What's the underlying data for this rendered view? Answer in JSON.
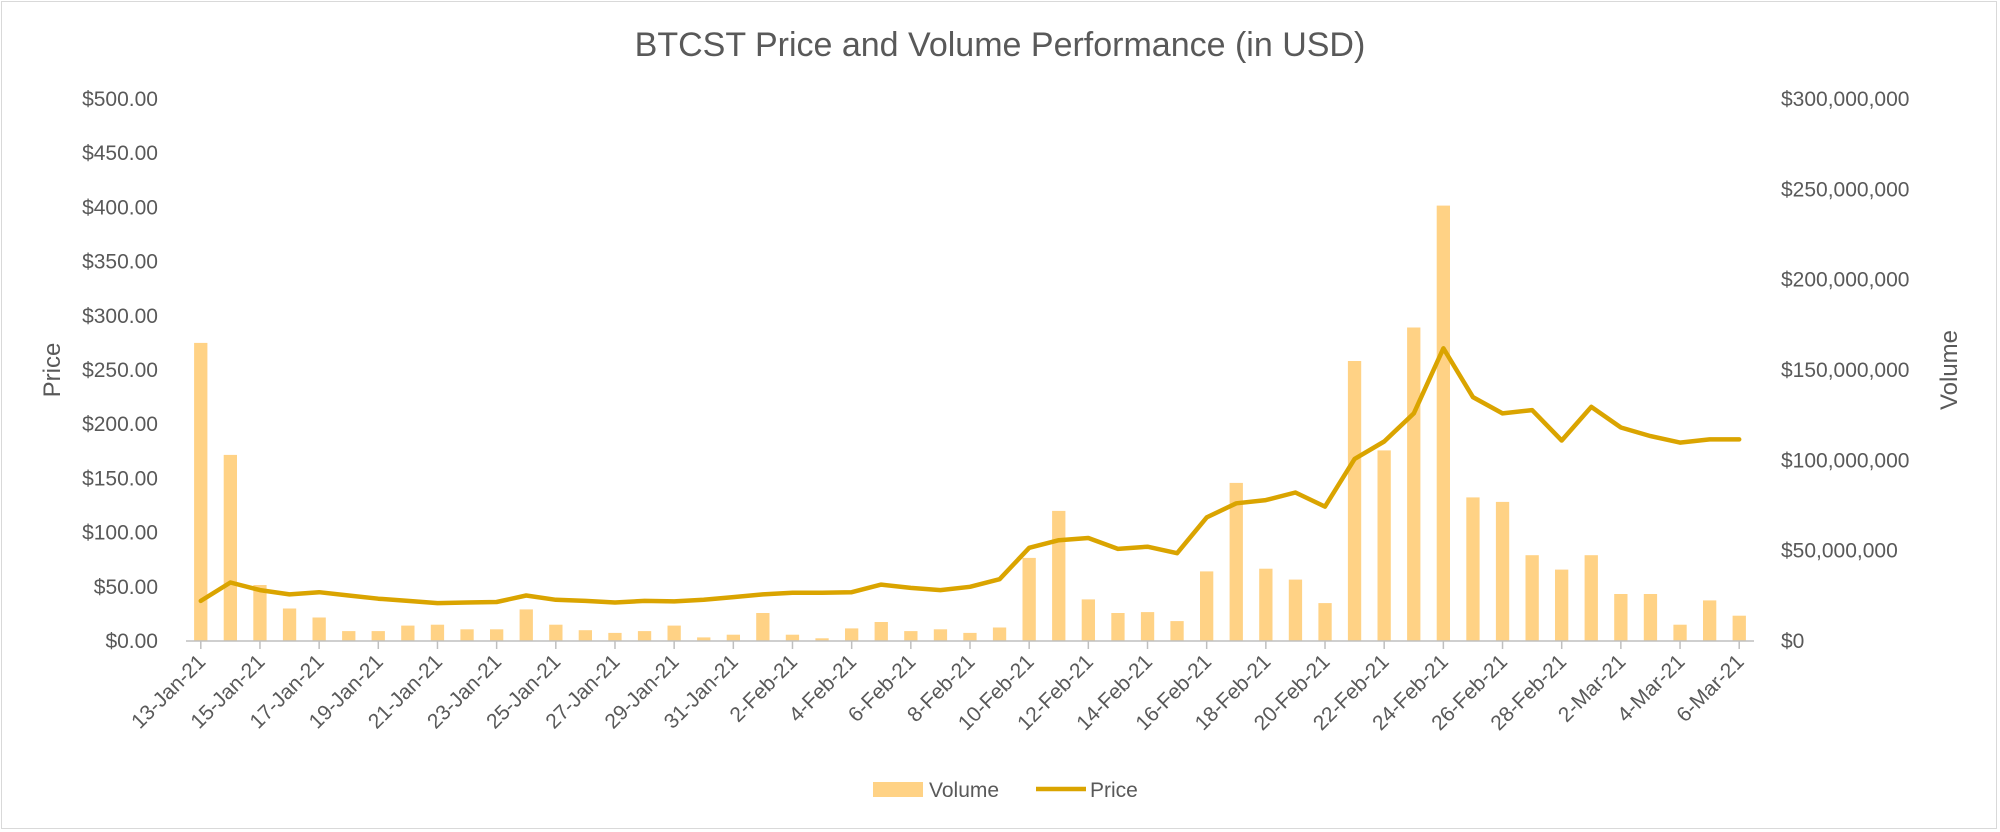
{
  "chart_data": {
    "type": "bar+line",
    "title": "BTCST Price and Volume Performance (in USD)",
    "ylabel_left": "Price",
    "ylabel_right": "Volume",
    "ylim_left": [
      0,
      500
    ],
    "ylim_right": [
      0,
      300000000
    ],
    "y_ticks_left": [
      "$0.00",
      "$50.00",
      "$100.00",
      "$150.00",
      "$200.00",
      "$250.00",
      "$300.00",
      "$350.00",
      "$400.00",
      "$450.00",
      "$500.00"
    ],
    "y_ticks_right": [
      "$0",
      "$50,000,000",
      "$100,000,000",
      "$150,000,000",
      "$200,000,000",
      "$250,000,000",
      "$300,000,000"
    ],
    "x_tick_labels": [
      "13-Jan-21",
      "15-Jan-21",
      "17-Jan-21",
      "19-Jan-21",
      "21-Jan-21",
      "23-Jan-21",
      "25-Jan-21",
      "27-Jan-21",
      "29-Jan-21",
      "31-Jan-21",
      "2-Feb-21",
      "4-Feb-21",
      "6-Feb-21",
      "8-Feb-21",
      "10-Feb-21",
      "12-Feb-21",
      "14-Feb-21",
      "16-Feb-21",
      "18-Feb-21",
      "20-Feb-21",
      "22-Feb-21",
      "24-Feb-21",
      "26-Feb-21",
      "28-Feb-21",
      "2-Mar-21",
      "4-Mar-21",
      "6-Mar-21"
    ],
    "start_date": "13-Jan-21",
    "num_days": 53,
    "legend_position": "bottom",
    "series": [
      {
        "name": "Volume",
        "type": "bar",
        "axis": "right",
        "color": "#FFD285",
        "values": [
          165000000,
          103000000,
          31000000,
          18000000,
          13000000,
          5500000,
          5500000,
          8500000,
          9000000,
          6500000,
          6500000,
          17500000,
          9000000,
          6000000,
          4500000,
          5500000,
          8500000,
          2000000,
          3500000,
          15500000,
          3500000,
          1500000,
          7000000,
          10500000,
          5500000,
          6500000,
          4500000,
          7500000,
          46000000,
          72000000,
          23000000,
          15500000,
          16000000,
          11000000,
          38500000,
          87500000,
          40000000,
          34000000,
          21000000,
          155000000,
          105500000,
          173500000,
          241000000,
          79500000,
          77000000,
          47500000,
          39500000,
          47500000,
          26000000,
          26000000,
          9000000,
          22500000,
          14000000
        ]
      },
      {
        "name": "Price",
        "type": "line",
        "axis": "left",
        "color": "#DAA400",
        "values": [
          37,
          54,
          47,
          43,
          45,
          42,
          39,
          37,
          35,
          35.5,
          36,
          42,
          38,
          37,
          35.5,
          37,
          36.5,
          38,
          40.5,
          43,
          44.5,
          44.5,
          45,
          52,
          49,
          47,
          50,
          57,
          86,
          93,
          95,
          85,
          87,
          81,
          114,
          127,
          130,
          137,
          124,
          168,
          184,
          210,
          270,
          225,
          210,
          213,
          185,
          216,
          197,
          189,
          183,
          186,
          186
        ]
      }
    ]
  }
}
